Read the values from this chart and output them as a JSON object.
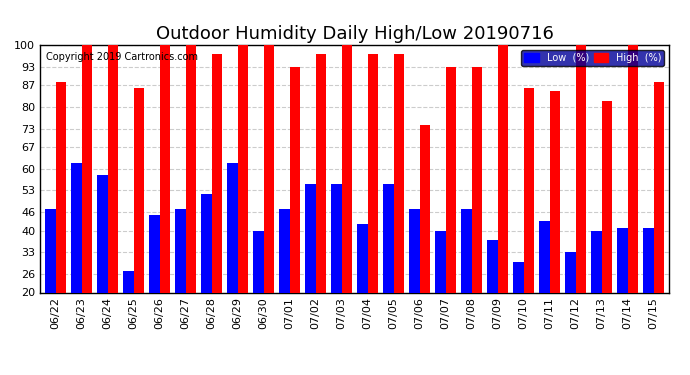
{
  "title": "Outdoor Humidity Daily High/Low 20190716",
  "copyright": "Copyright 2019 Cartronics.com",
  "categories": [
    "06/22",
    "06/23",
    "06/24",
    "06/25",
    "06/26",
    "06/27",
    "06/28",
    "06/29",
    "06/30",
    "07/01",
    "07/02",
    "07/03",
    "07/04",
    "07/05",
    "07/06",
    "07/07",
    "07/08",
    "07/09",
    "07/10",
    "07/11",
    "07/12",
    "07/13",
    "07/14",
    "07/15"
  ],
  "high_values": [
    88,
    100,
    100,
    86,
    100,
    100,
    97,
    100,
    100,
    93,
    97,
    100,
    97,
    97,
    74,
    93,
    93,
    100,
    86,
    85,
    100,
    82,
    100,
    88
  ],
  "low_values": [
    47,
    62,
    58,
    27,
    45,
    47,
    52,
    62,
    40,
    47,
    55,
    55,
    42,
    55,
    47,
    40,
    47,
    37,
    30,
    43,
    33,
    40,
    41,
    41
  ],
  "high_color": "#ff0000",
  "low_color": "#0000ff",
  "bg_color": "#ffffff",
  "plot_bg_color": "#ffffff",
  "ylim": [
    20,
    100
  ],
  "ybase": 20,
  "yticks": [
    20,
    26,
    33,
    40,
    46,
    53,
    60,
    67,
    73,
    80,
    87,
    93,
    100
  ],
  "legend_low_label": "Low  (%)",
  "legend_high_label": "High  (%)",
  "bar_width": 0.4,
  "title_fontsize": 13,
  "tick_fontsize": 8,
  "copyright_fontsize": 7
}
